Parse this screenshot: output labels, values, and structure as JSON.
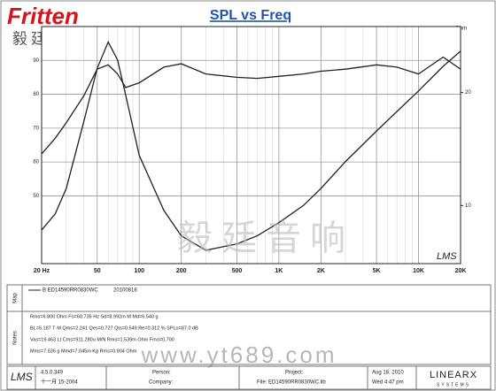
{
  "chart_data": {
    "type": "line",
    "title": "SPL vs Freq",
    "y2_label": "Ohm",
    "x": [
      20,
      25,
      30,
      40,
      50,
      60,
      70,
      80,
      100,
      150,
      200,
      300,
      500,
      700,
      1000,
      1500,
      2000,
      3000,
      5000,
      7000,
      10000,
      15000,
      20000
    ],
    "series": [
      {
        "color": "#222222",
        "values": [
          62.4,
          67,
          71.6,
          79.5,
          87.4,
          88.7,
          86,
          82,
          83.4,
          88,
          89,
          86,
          85,
          84.7,
          85.3,
          86,
          86.8,
          87.4,
          88.7,
          88,
          86,
          91,
          87.4
        ]
      },
      {
        "color": "#222222",
        "axis": "y2",
        "values": [
          8.6,
          9.5,
          11.1,
          16.7,
          23.2,
          27.3,
          24.4,
          19.7,
          13.6,
          9.7,
          8.3,
          7.6,
          7.9,
          8.3,
          9,
          10,
          11.1,
          13.1,
          15.8,
          17.8,
          20.2,
          23.5,
          25.8
        ]
      }
    ],
    "log_x": true,
    "grid": true,
    "xlim": [
      20,
      20000
    ],
    "xticks": [
      {
        "value": 20,
        "label": "20 Hz"
      },
      50,
      100,
      200,
      500,
      {
        "value": 1000,
        "label": "1K"
      },
      {
        "value": 2000,
        "label": "2K"
      },
      {
        "value": 5000,
        "label": "5K"
      },
      {
        "value": 10000,
        "label": "10K"
      },
      {
        "value": 20000,
        "label": "20K"
      }
    ],
    "ylim": [
      30,
      100
    ],
    "yticks": [
      50,
      60,
      70,
      80,
      90
    ],
    "log_y2": true,
    "y2lim": [
      7,
      30
    ],
    "y2ticks": [
      10,
      20
    ]
  },
  "logo": {
    "brand": "Fritten",
    "chinese": "毅廷音响"
  },
  "legend": {
    "entry": "B  ED14590RR0830WC",
    "date": "20100818"
  },
  "side_labels": {
    "map": "Map",
    "notes": "Notes"
  },
  "notes": [
    "Rms=6.800 Ohm  Fo=60.735 Hz  Sd=8.992m M  Md=6.540 g",
    "BL=5.187 T·M  Qms=2.241  Qes=0.727  Qts=0.549  Re=0.312 %  SPLo=87.0 dB",
    "Vas=19.463 Lt  Cms=911.280u M/N  Rms=1.539m Ohm  Fmo=0.700",
    "Mms=7.535 g  Mmd=7.045m Kg  Rms=0.904 Ohm"
  ],
  "watermark": {
    "chinese": "毅廷音响",
    "url": "www.yt689.com"
  },
  "footer": {
    "software": "LMS",
    "version": "4.5.0.349",
    "date": "十一月 15-2004",
    "person": "Person:",
    "company": "Company:",
    "project": "Project:",
    "file": "File: ED14590RR0830WC.lib",
    "date2": "Aug 18, 2010",
    "time": "Wed 4:47 pm",
    "vendor": "LINEARX",
    "vendor_sub": "SYSTEMS"
  }
}
